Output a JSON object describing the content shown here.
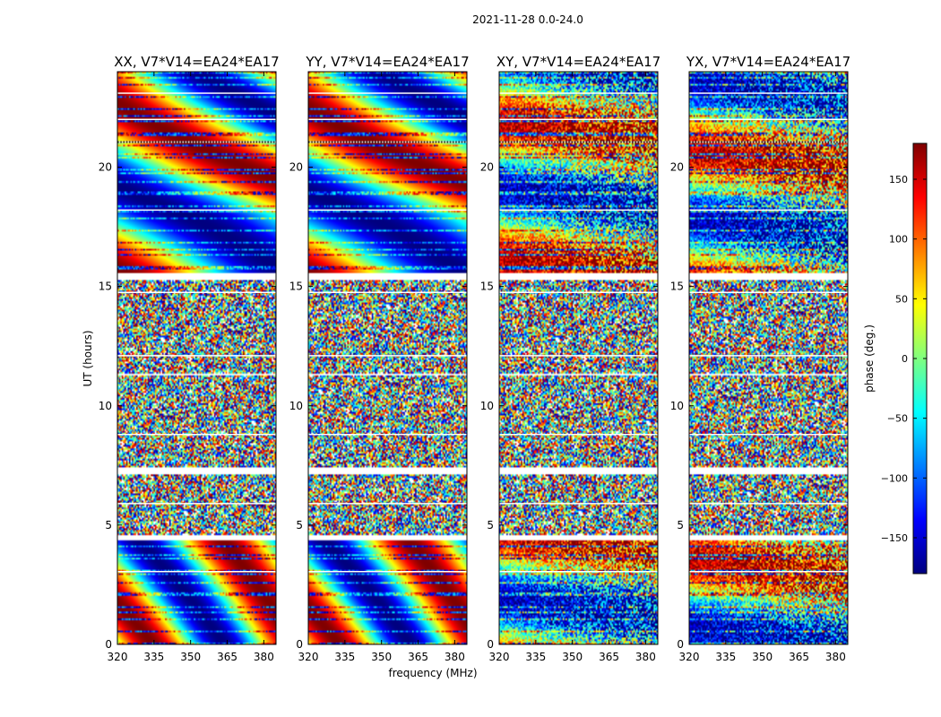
{
  "figure": {
    "suptitle": "2021-11-28 0.0-24.0",
    "xlabel": "frequency (MHz)",
    "ylabel": "UT (hours)"
  },
  "chart_data": {
    "type": "heatmap",
    "title": "2021-11-28 0.0-24.0",
    "xlabel": "frequency (MHz)",
    "ylabel": "UT (hours)",
    "xlim": [
      320,
      385
    ],
    "ylim": [
      0,
      24
    ],
    "xticks": [
      320,
      335,
      350,
      365,
      380
    ],
    "yticks": [
      0,
      5,
      10,
      15,
      20
    ],
    "colorbar": {
      "label": "phase (deg.)",
      "range": [
        -180,
        180
      ],
      "ticks": [
        150,
        100,
        50,
        0,
        -50,
        -100,
        -150
      ],
      "tick_labels": [
        "150",
        "100",
        "50",
        "0",
        "−50",
        "−100",
        "−150"
      ],
      "colormap": [
        "#00007f",
        "#0000ff",
        "#007fff",
        "#00ffff",
        "#7fff7f",
        "#ffff00",
        "#ff7f00",
        "#ff0000",
        "#7f0000"
      ]
    },
    "panels": [
      {
        "title": "XX, V7*V14=EA24*EA17",
        "pattern": "smooth"
      },
      {
        "title": "YY, V7*V14=EA24*EA17",
        "pattern": "smooth"
      },
      {
        "title": "XY, V7*V14=EA24*EA17",
        "pattern": "noisy"
      },
      {
        "title": "YX, V7*V14=EA24*EA17",
        "pattern": "noisy"
      }
    ],
    "flagged_hour_ranges": [
      [
        4.35,
        4.6
      ],
      [
        7.15,
        7.45
      ],
      [
        11.25,
        11.35
      ],
      [
        15.3,
        15.6
      ],
      [
        21.0,
        21.1
      ]
    ],
    "noise_hour_range": [
      4.6,
      15.3
    ]
  }
}
